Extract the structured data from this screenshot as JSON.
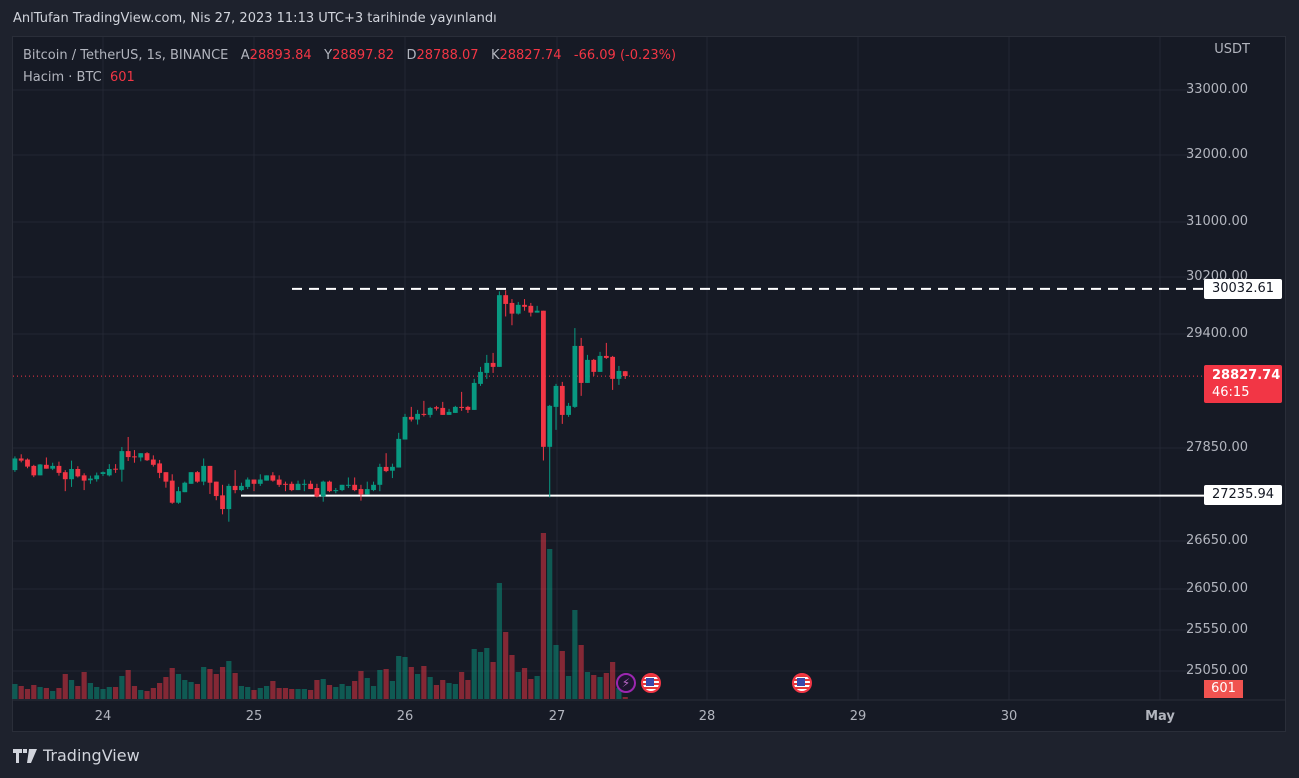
{
  "header": {
    "published": "AnlTufan TradingView.com, Nis 27, 2023 11:13 UTC+3 tarihinde yayınlandı"
  },
  "legend": {
    "symbol": "Bitcoin / TetherUS, 1s, BINANCE",
    "open_label": "A",
    "open": "28893.84",
    "high_label": "Y",
    "high": "28897.82",
    "low_label": "D",
    "low": "28788.07",
    "close_label": "K",
    "close": "28827.74",
    "change": "-66.09 (-0.23%)",
    "volume_label": "Hacim · BTC",
    "volume": "601"
  },
  "price_axis": {
    "currency": "USDT",
    "ticks": [
      "33000.00",
      "32000.00",
      "31000.00",
      "30200.00",
      "29400.00",
      "27850.00",
      "26650.00",
      "26050.00",
      "25550.00",
      "25050.00"
    ],
    "scale": "log"
  },
  "time_axis": {
    "ticks": [
      "24",
      "25",
      "26",
      "27",
      "28",
      "29",
      "30",
      "May"
    ]
  },
  "lines": {
    "resistance": {
      "value": "30032.61",
      "style": "dashed",
      "color": "#ffffff"
    },
    "support": {
      "value": "27235.94",
      "style": "solid",
      "color": "#ffffff"
    }
  },
  "current": {
    "price": "28827.74",
    "countdown": "46:15",
    "volume": "601"
  },
  "colors": {
    "up": "#089981",
    "down": "#f23645",
    "background": "#161a25"
  },
  "events": [
    {
      "icon": "lightning-icon",
      "color": "#9c27b0"
    },
    {
      "icon": "us-flag-icon",
      "color": "#f23645"
    },
    {
      "icon": "us-flag-icon",
      "color": "#f23645"
    }
  ],
  "footer": {
    "brand": "TradingView"
  },
  "chart_data": {
    "type": "candlestick",
    "interval": "1h",
    "first_bar": "Apr 23 10:00",
    "ohlc": [
      [
        27565,
        27742,
        27542,
        27715
      ],
      [
        27715,
        27769,
        27665,
        27687
      ],
      [
        27701,
        27715,
        27588,
        27610
      ],
      [
        27619,
        27633,
        27474,
        27497
      ],
      [
        27497,
        27642,
        27497,
        27638
      ],
      [
        27633,
        27728,
        27583,
        27583
      ],
      [
        27583,
        27660,
        27565,
        27619
      ],
      [
        27619,
        27674,
        27493,
        27529
      ],
      [
        27538,
        27565,
        27293,
        27447
      ],
      [
        27447,
        27687,
        27348,
        27579
      ],
      [
        27579,
        27615,
        27470,
        27484
      ],
      [
        27497,
        27524,
        27307,
        27429
      ],
      [
        27434,
        27493,
        27388,
        27456
      ],
      [
        27447,
        27533,
        27416,
        27497
      ],
      [
        27515,
        27547,
        27488,
        27538
      ],
      [
        27497,
        27642,
        27484,
        27579
      ],
      [
        27583,
        27642,
        27529,
        27570
      ],
      [
        27570,
        27864,
        27416,
        27810
      ],
      [
        27810,
        28000,
        27683,
        27733
      ],
      [
        27742,
        27823,
        27660,
        27733
      ],
      [
        27728,
        27783,
        27678,
        27783
      ],
      [
        27783,
        27796,
        27683,
        27692
      ],
      [
        27701,
        27755,
        27610,
        27633
      ],
      [
        27651,
        27696,
        27461,
        27529
      ],
      [
        27538,
        27538,
        27338,
        27416
      ],
      [
        27429,
        27511,
        27130,
        27144
      ],
      [
        27144,
        27348,
        27130,
        27293
      ],
      [
        27280,
        27416,
        27280,
        27402
      ],
      [
        27388,
        27538,
        27388,
        27538
      ],
      [
        27538,
        27552,
        27402,
        27416
      ],
      [
        27416,
        27715,
        27370,
        27619
      ],
      [
        27619,
        27619,
        27257,
        27402
      ],
      [
        27416,
        27416,
        27176,
        27230
      ],
      [
        27239,
        27375,
        26994,
        27062
      ],
      [
        27062,
        27388,
        26899,
        27361
      ],
      [
        27361,
        27565,
        27266,
        27307
      ],
      [
        27307,
        27402,
        27293,
        27361
      ],
      [
        27348,
        27470,
        27320,
        27443
      ],
      [
        27443,
        27443,
        27293,
        27388
      ],
      [
        27388,
        27511,
        27361,
        27443
      ],
      [
        27429,
        27497,
        27429,
        27497
      ],
      [
        27497,
        27538,
        27416,
        27429
      ],
      [
        27443,
        27497,
        27348,
        27375
      ],
      [
        27388,
        27416,
        27293,
        27380
      ],
      [
        27388,
        27416,
        27293,
        27307
      ],
      [
        27307,
        27429,
        27307,
        27388
      ],
      [
        27380,
        27443,
        27293,
        27388
      ],
      [
        27388,
        27429,
        27320,
        27320
      ],
      [
        27334,
        27388,
        27212,
        27225
      ],
      [
        27225,
        27429,
        27157,
        27416
      ],
      [
        27416,
        27429,
        27280,
        27293
      ],
      [
        27293,
        27334,
        27266,
        27307
      ],
      [
        27307,
        27375,
        27293,
        27375
      ],
      [
        27366,
        27470,
        27334,
        27375
      ],
      [
        27375,
        27470,
        27293,
        27307
      ],
      [
        27320,
        27375,
        27171,
        27252
      ],
      [
        27252,
        27416,
        27252,
        27320
      ],
      [
        27307,
        27416,
        27293,
        27375
      ],
      [
        27375,
        27647,
        27293,
        27606
      ],
      [
        27606,
        27783,
        27538,
        27552
      ],
      [
        27557,
        27648,
        27462,
        27607
      ],
      [
        27598,
        28056,
        27598,
        27974
      ],
      [
        27965,
        28314,
        27965,
        28273
      ],
      [
        28273,
        28409,
        28210,
        28237
      ],
      [
        28237,
        28368,
        28169,
        28314
      ],
      [
        28314,
        28491,
        28278,
        28300
      ],
      [
        28300,
        28409,
        28264,
        28395
      ],
      [
        28404,
        28423,
        28359,
        28386
      ],
      [
        28395,
        28477,
        28300,
        28300
      ],
      [
        28300,
        28382,
        28300,
        28341
      ],
      [
        28327,
        28423,
        28327,
        28409
      ],
      [
        28409,
        28613,
        28355,
        28395
      ],
      [
        28409,
        28423,
        28327,
        28368
      ],
      [
        28368,
        28790,
        28368,
        28735
      ],
      [
        28722,
        28953,
        28694,
        28885
      ],
      [
        28871,
        29116,
        28790,
        29007
      ],
      [
        29007,
        29143,
        28871,
        28953
      ],
      [
        28953,
        29999,
        28953,
        29945
      ],
      [
        29945,
        30013,
        29646,
        29822
      ],
      [
        29836,
        29890,
        29523,
        29686
      ],
      [
        29686,
        29850,
        29673,
        29809
      ],
      [
        29809,
        29890,
        29727,
        29782
      ],
      [
        29795,
        29836,
        29646,
        29700
      ],
      [
        29700,
        29795,
        29700,
        29727
      ],
      [
        29727,
        29727,
        27689,
        27866
      ],
      [
        27866,
        28436,
        27213,
        28423
      ],
      [
        28409,
        28722,
        28097,
        28694
      ],
      [
        28694,
        28749,
        28178,
        28300
      ],
      [
        28300,
        28463,
        28273,
        28423
      ],
      [
        28409,
        29483,
        28395,
        29238
      ],
      [
        29238,
        29347,
        28559,
        28735
      ],
      [
        28735,
        29116,
        28735,
        29048
      ],
      [
        29048,
        29061,
        28830,
        28885
      ],
      [
        28885,
        29157,
        28885,
        29102
      ],
      [
        29102,
        29279,
        29061,
        29075
      ],
      [
        29089,
        29102,
        28640,
        28790
      ],
      [
        28790,
        28966,
        28708,
        28898
      ],
      [
        28893.84,
        28897.82,
        28788.07,
        28827.74
      ]
    ],
    "volume": [
      4500,
      3900,
      3000,
      4200,
      3600,
      3300,
      2400,
      3300,
      7500,
      5700,
      3900,
      8100,
      4800,
      3600,
      3000,
      3600,
      3600,
      6900,
      8700,
      3900,
      2700,
      2400,
      3300,
      4800,
      6600,
      9300,
      7500,
      5700,
      5100,
      4500,
      9600,
      9000,
      7500,
      9600,
      11400,
      7800,
      3900,
      3600,
      2700,
      3300,
      3900,
      5400,
      3300,
      3300,
      3000,
      3000,
      3000,
      2700,
      5700,
      6000,
      4200,
      3600,
      4500,
      3900,
      5400,
      8400,
      6300,
      3900,
      8700,
      9000,
      5400,
      12900,
      12600,
      9600,
      7500,
      9900,
      6600,
      4200,
      5700,
      4800,
      4500,
      8100,
      5700,
      15000,
      14100,
      15300,
      11100,
      34800,
      20100,
      13200,
      8100,
      9300,
      6000,
      6900,
      49800,
      45000,
      16200,
      14400,
      6900,
      26700,
      16200,
      8100,
      7200,
      6600,
      7800,
      11100,
      3300,
      601
    ],
    "ylim": [
      24950,
      33300
    ]
  }
}
